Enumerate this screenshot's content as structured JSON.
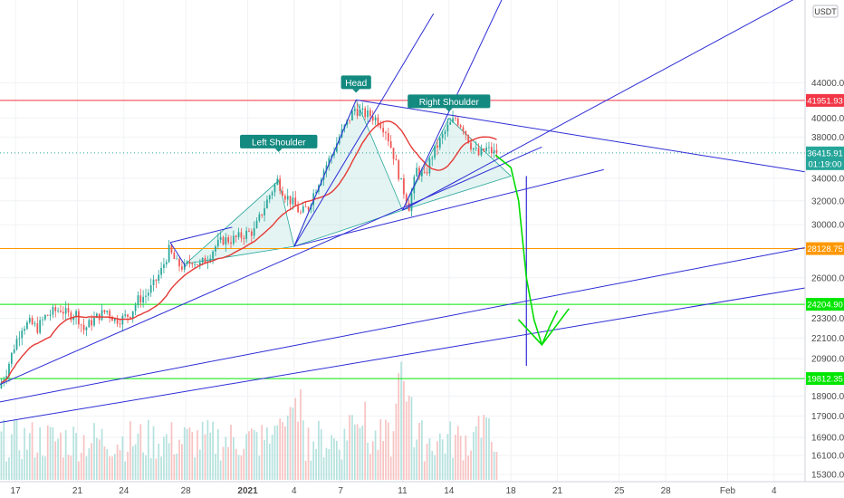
{
  "chart_data": {
    "type": "candlestick",
    "currency": "USDT",
    "y_scale": "log",
    "ylim": [
      15000,
      55000
    ],
    "y_ticks": [
      "15300.00",
      "16100.00",
      "16900.00",
      "17900.00",
      "18900.00",
      "20900.00",
      "22100.00",
      "23300.00",
      "26000.00",
      "30000.00",
      "32000.00",
      "34000.00",
      "38000.00",
      "40000.00",
      "44000.00"
    ],
    "x_ticks": [
      {
        "label": "17",
        "date": "2020-12-17"
      },
      {
        "label": "21",
        "date": "2020-12-21"
      },
      {
        "label": "24",
        "date": "2020-12-24"
      },
      {
        "label": "28",
        "date": "2020-12-28"
      },
      {
        "label": "2021",
        "date": "2021-01-01"
      },
      {
        "label": "4",
        "date": "2021-01-04"
      },
      {
        "label": "7",
        "date": "2021-01-07"
      },
      {
        "label": "11",
        "date": "2021-01-11"
      },
      {
        "label": "14",
        "date": "2021-01-14"
      },
      {
        "label": "18",
        "date": "2021-01-18"
      },
      {
        "label": "21",
        "date": "2021-01-21"
      },
      {
        "label": "25",
        "date": "2021-01-25"
      },
      {
        "label": "28",
        "date": "2021-01-28"
      },
      {
        "label": "Feb",
        "date": "2021-02-01"
      },
      {
        "label": "4",
        "date": "2021-02-04"
      }
    ],
    "price_levels": [
      {
        "value": 41951.93,
        "label": "41951.93",
        "color": "#f23645"
      },
      {
        "value": 28128.75,
        "label": "28128.75",
        "color": "#ff9800"
      },
      {
        "value": 24204.9,
        "label": "24204.90",
        "color": "#00e600"
      },
      {
        "value": 19812.35,
        "label": "19812.35",
        "color": "#00e600"
      }
    ],
    "current_price": {
      "value": 36415.91,
      "label": "36415.91",
      "countdown": "01:19:00",
      "color": "#26a69a"
    },
    "annotations": [
      {
        "text": "Left Shoulder",
        "date": "2021-01-03",
        "price": 37500
      },
      {
        "text": "Head",
        "date": "2021-01-08",
        "price": 44000
      },
      {
        "text": "Right Shoulder",
        "date": "2021-01-14",
        "price": 41800
      }
    ],
    "price_path": [
      [
        "2020-12-16T00:00",
        19300
      ],
      [
        "2020-12-16T12:00",
        20200
      ],
      [
        "2020-12-17T00:00",
        21600
      ],
      [
        "2020-12-17T12:00",
        22800
      ],
      [
        "2020-12-18T00:00",
        23000
      ],
      [
        "2020-12-18T12:00",
        22700
      ],
      [
        "2020-12-19T00:00",
        23400
      ],
      [
        "2020-12-19T12:00",
        23700
      ],
      [
        "2020-12-20T00:00",
        23900
      ],
      [
        "2020-12-20T12:00",
        23500
      ],
      [
        "2020-12-21T00:00",
        23600
      ],
      [
        "2020-12-21T12:00",
        22600
      ],
      [
        "2020-12-22T00:00",
        23100
      ],
      [
        "2020-12-22T12:00",
        23500
      ],
      [
        "2020-12-23T00:00",
        23800
      ],
      [
        "2020-12-23T12:00",
        23200
      ],
      [
        "2020-12-24T00:00",
        23300
      ],
      [
        "2020-12-24T12:00",
        23600
      ],
      [
        "2020-12-25T00:00",
        24500
      ],
      [
        "2020-12-25T12:00",
        24800
      ],
      [
        "2020-12-26T00:00",
        25500
      ],
      [
        "2020-12-26T12:00",
        26500
      ],
      [
        "2020-12-27T00:00",
        28000
      ],
      [
        "2020-12-27T12:00",
        27000
      ],
      [
        "2020-12-28T00:00",
        26700
      ],
      [
        "2020-12-28T12:00",
        27300
      ],
      [
        "2020-12-29T00:00",
        26900
      ],
      [
        "2020-12-29T12:00",
        27500
      ],
      [
        "2020-12-30T00:00",
        28300
      ],
      [
        "2020-12-30T12:00",
        28800
      ],
      [
        "2020-12-31T00:00",
        28800
      ],
      [
        "2020-12-31T12:00",
        29000
      ],
      [
        "2021-01-01T00:00",
        29300
      ],
      [
        "2021-01-01T12:00",
        29500
      ],
      [
        "2021-01-02T00:00",
        31000
      ],
      [
        "2021-01-02T12:00",
        32500
      ],
      [
        "2021-01-03T00:00",
        33800
      ],
      [
        "2021-01-03T12:00",
        32500
      ],
      [
        "2021-01-04T00:00",
        31800
      ],
      [
        "2021-01-04T12:00",
        30900
      ],
      [
        "2021-01-05T00:00",
        31500
      ],
      [
        "2021-01-05T12:00",
        33200
      ],
      [
        "2021-01-06T00:00",
        34800
      ],
      [
        "2021-01-06T12:00",
        36200
      ],
      [
        "2021-01-07T00:00",
        38000
      ],
      [
        "2021-01-07T12:00",
        39500
      ],
      [
        "2021-01-08T00:00",
        41000
      ],
      [
        "2021-01-08T12:00",
        40500
      ],
      [
        "2021-01-09T00:00",
        40300
      ],
      [
        "2021-01-09T12:00",
        39800
      ],
      [
        "2021-01-10T00:00",
        38700
      ],
      [
        "2021-01-10T12:00",
        36200
      ],
      [
        "2021-01-11T00:00",
        33500
      ],
      [
        "2021-01-11T12:00",
        31500
      ],
      [
        "2021-01-12T00:00",
        34800
      ],
      [
        "2021-01-12T12:00",
        34100
      ],
      [
        "2021-01-13T00:00",
        36200
      ],
      [
        "2021-01-13T12:00",
        37600
      ],
      [
        "2021-01-14T00:00",
        39000
      ],
      [
        "2021-01-14T12:00",
        40000
      ],
      [
        "2021-01-15T00:00",
        39000
      ],
      [
        "2021-01-15T12:00",
        37200
      ],
      [
        "2021-01-16T00:00",
        36200
      ],
      [
        "2021-01-16T12:00",
        36800
      ],
      [
        "2021-01-17T00:00",
        36415.91
      ]
    ],
    "volume_spikes": [
      {
        "date": "2021-01-11",
        "relative": 1.0
      },
      {
        "date": "2021-01-04",
        "relative": 0.75
      },
      {
        "date": "2021-01-08",
        "relative": 0.65
      },
      {
        "date": "2021-01-03",
        "relative": 0.55
      },
      {
        "date": "2021-01-16",
        "relative": 0.55
      }
    ],
    "x_origin": "2020-12-17",
    "x_range": [
      "2020-12-16",
      "2021-02-06"
    ],
    "trendlines": [
      {
        "color": "#2d2dd6",
        "from": [
          "2020-12-16",
          19500
        ],
        "to": [
          "2021-01-20",
          37000
        ]
      },
      {
        "color": "#2d2dd6",
        "from": [
          "2021-01-04",
          28300
        ],
        "to": [
          "2021-01-24",
          34800
        ]
      },
      {
        "color": "#2d2dd6",
        "from": [
          "2021-01-08",
          42000
        ],
        "to": [
          "2021-02-06",
          34600
        ]
      },
      {
        "color": "#2d2dd6",
        "from": [
          "2020-12-16",
          18600
        ],
        "to": [
          "2021-02-06",
          28200
        ]
      },
      {
        "color": "#2d2dd6",
        "from": [
          "2020-12-16",
          17600
        ],
        "to": [
          "2021-02-06",
          25300
        ]
      },
      {
        "color": "#2d2dd6",
        "from": [
          "2020-12-27",
          28600
        ],
        "to": [
          "2020-12-28",
          26800
        ]
      },
      {
        "color": "#2d2dd6",
        "from": [
          "2020-12-27",
          28600
        ],
        "to": [
          "2020-12-31",
          29800
        ]
      },
      {
        "color": "#2d2dd6",
        "from": [
          "2021-01-04",
          28300
        ],
        "to": [
          "2021-01-13",
          53000
        ]
      },
      {
        "color": "#2d2dd6",
        "from": [
          "2021-01-11",
          31200
        ],
        "to": [
          "2021-01-18",
          58000
        ]
      },
      {
        "color": "#2d2dd6",
        "from": [
          "2021-01-11",
          31200
        ],
        "to": [
          "2021-02-06",
          56000
        ]
      },
      {
        "color": "#2d2dd6",
        "from": [
          "2021-01-04",
          28300
        ],
        "to": [
          "2021-01-08",
          42000
        ]
      }
    ],
    "hs_fill": [
      [
        "2020-12-28",
        27000
      ],
      [
        "2021-01-03",
        33800
      ],
      [
        "2021-01-04",
        28300
      ],
      [
        "2021-01-08",
        42000
      ],
      [
        "2021-01-11",
        31200
      ],
      [
        "2021-01-14",
        40000
      ],
      [
        "2021-01-18",
        34200
      ],
      [
        "2021-01-11",
        31200
      ],
      [
        "2021-01-04",
        28300
      ]
    ],
    "projection_arrow": {
      "color": "#2d2dd6",
      "from": [
        "2021-01-19",
        34200
      ],
      "to": [
        "2021-01-19",
        20500
      ]
    },
    "green_path": {
      "color": "#00dd00",
      "points": [
        [
          "2021-01-17",
          36200
        ],
        [
          "2021-01-18",
          35000
        ],
        [
          "2021-01-18T12:00",
          32000
        ],
        [
          "2021-01-19",
          26000
        ],
        [
          "2021-01-19T12:00",
          23200
        ],
        [
          "2021-01-20",
          21700
        ],
        [
          "2021-01-20T12:00",
          22800
        ],
        [
          "2021-01-21",
          23800
        ]
      ]
    }
  }
}
